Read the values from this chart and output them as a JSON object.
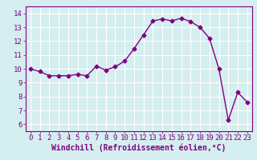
{
  "x": [
    0,
    1,
    2,
    3,
    4,
    5,
    6,
    7,
    8,
    9,
    10,
    11,
    12,
    13,
    14,
    15,
    16,
    17,
    18,
    19,
    20,
    21,
    22,
    23
  ],
  "y": [
    10.0,
    9.8,
    9.5,
    9.5,
    9.5,
    9.6,
    9.5,
    10.2,
    9.9,
    10.15,
    10.55,
    11.45,
    12.45,
    13.45,
    13.6,
    13.45,
    13.65,
    13.4,
    13.0,
    12.2,
    10.0,
    6.3,
    8.3,
    7.6
  ],
  "color": "#800080",
  "marker": "D",
  "markersize": 2.5,
  "linewidth": 1.0,
  "xlabel": "Windchill (Refroidissement éolien,°C)",
  "xlabel_fontsize": 7,
  "bg_color": "#d5eef0",
  "grid_color": "#ffffff",
  "xlim": [
    -0.5,
    23.5
  ],
  "ylim": [
    5.5,
    14.5
  ],
  "yticks": [
    6,
    7,
    8,
    9,
    10,
    11,
    12,
    13,
    14
  ],
  "xticks": [
    0,
    1,
    2,
    3,
    4,
    5,
    6,
    7,
    8,
    9,
    10,
    11,
    12,
    13,
    14,
    15,
    16,
    17,
    18,
    19,
    20,
    21,
    22,
    23
  ],
  "tick_fontsize": 6.5,
  "tick_color": "#800080",
  "spine_color": "#800080"
}
